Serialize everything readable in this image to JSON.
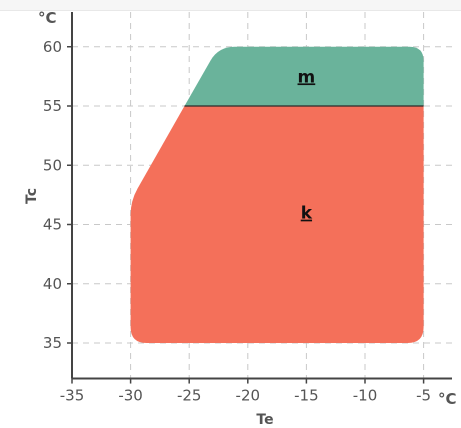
{
  "chart_data": {
    "type": "area",
    "title": "",
    "xlabel": "Te",
    "ylabel": "Tc",
    "x_unit": "°C",
    "y_unit": "°C",
    "xlim": [
      -35,
      -5
    ],
    "ylim": [
      32,
      62
    ],
    "x_ticks": [
      -35,
      -30,
      -25,
      -20,
      -15,
      -10,
      -5
    ],
    "y_ticks": [
      35,
      40,
      45,
      50,
      55,
      60
    ],
    "grid": true,
    "series": [
      {
        "name": "k",
        "color": "#f4705a",
        "points": [
          [
            -30,
            35
          ],
          [
            -30,
            47
          ],
          [
            -25.4,
            55
          ],
          [
            -5,
            55
          ],
          [
            -5,
            35
          ]
        ]
      },
      {
        "name": "m",
        "color": "#6ab39b",
        "points": [
          [
            -25.4,
            55
          ],
          [
            -22.5,
            60
          ],
          [
            -5,
            60
          ],
          [
            -5,
            55
          ]
        ]
      }
    ],
    "labels": [
      {
        "text": "m",
        "x": -15,
        "y": 57.5
      },
      {
        "text": "k",
        "x": -15,
        "y": 46
      }
    ]
  }
}
